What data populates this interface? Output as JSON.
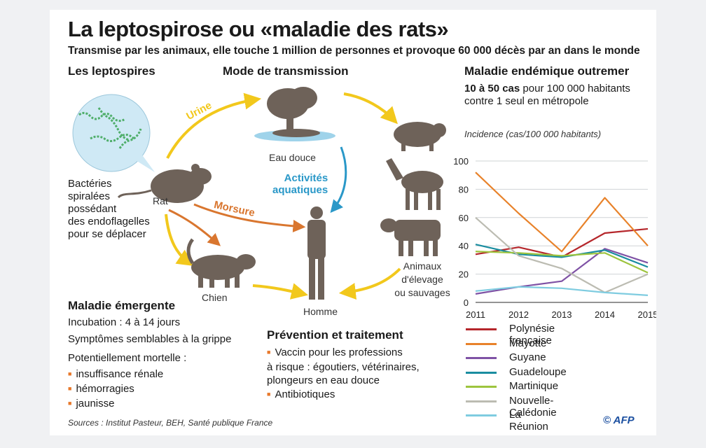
{
  "header": {
    "title": "La leptospirose ou «maladie des rats»",
    "subtitle": "Transmise par les animaux, elle touche 1 million de personnes et provoque 60 000 décès par an dans le monde"
  },
  "leptospires": {
    "heading": "Les leptospires",
    "description": [
      "Bactéries",
      "spiralées",
      "possédant",
      "des endoflagelles",
      "pour se déplacer"
    ]
  },
  "transmission": {
    "heading": "Mode de transmission",
    "urine_label": "Urine",
    "morsure_label": "Morsure",
    "activites_label": [
      "Activités",
      "aquatiques"
    ],
    "nodes": {
      "rat": "Rat",
      "eau": "Eau douce",
      "chien": "Chien",
      "homme": "Homme",
      "animaux": [
        "Animaux",
        "d'élevage",
        "ou sauvages"
      ]
    }
  },
  "emergente": {
    "heading": "Maladie émergente",
    "incubation": "Incubation : 4 à 14 jours",
    "symptomes": "Symptômes semblables à la grippe",
    "mortelle": "Potentiellement mortelle :",
    "items": [
      "insuffisance rénale",
      "hémorragies",
      "jaunisse"
    ]
  },
  "prevention": {
    "heading": "Prévention et traitement",
    "item1": [
      "Vaccin pour les professions",
      "à risque : égoutiers, vétérinaires,",
      "plongeurs en eau douce"
    ],
    "item2": "Antibiotiques"
  },
  "endemique": {
    "heading": "Maladie endémique outremer",
    "stat_bold": "10 à 50 cas",
    "stat_rest": " pour 100 000 habitants",
    "stat_line2": "contre 1 seul en métropole"
  },
  "footer": {
    "sources": "Sources : Institut Pasteur, BEH, Santé publique France",
    "credit": "© AFP"
  },
  "chart_data": {
    "type": "line",
    "ylabel": "Incidence (cas/100 000 habitants)",
    "x": [
      2011,
      2012,
      2013,
      2014,
      2015
    ],
    "ylim": [
      0,
      100
    ],
    "yticks": [
      0,
      20,
      40,
      60,
      80,
      100
    ],
    "grid": true,
    "legend_position": "bottom",
    "series": [
      {
        "name": "Polynésie française",
        "color": "#b5262b",
        "values": [
          34,
          39,
          32,
          49,
          52
        ]
      },
      {
        "name": "Mayotte",
        "color": "#e8822a",
        "values": [
          92,
          63,
          36,
          74,
          40
        ]
      },
      {
        "name": "Guyane",
        "color": "#7f52a5",
        "values": [
          6,
          11,
          15,
          38,
          28
        ]
      },
      {
        "name": "Guadeloupe",
        "color": "#1a8da0",
        "values": [
          41,
          34,
          32,
          37,
          25
        ]
      },
      {
        "name": "Martinique",
        "color": "#9dc43e",
        "values": [
          36,
          35,
          33,
          35,
          21
        ]
      },
      {
        "name": "Nouvelle-Calédonie",
        "color": "#bcbcb2",
        "values": [
          60,
          33,
          24,
          7,
          20
        ]
      },
      {
        "name": "La Réunion",
        "color": "#7fcce0",
        "values": [
          8,
          11,
          10,
          7,
          5
        ]
      }
    ]
  },
  "colors": {
    "arrow_yellow": "#f2c81c",
    "arrow_orange": "#d9762f",
    "arrow_blue": "#2a98c8",
    "silhouette": "#6e6259",
    "bubble": "#cfe9f5"
  }
}
